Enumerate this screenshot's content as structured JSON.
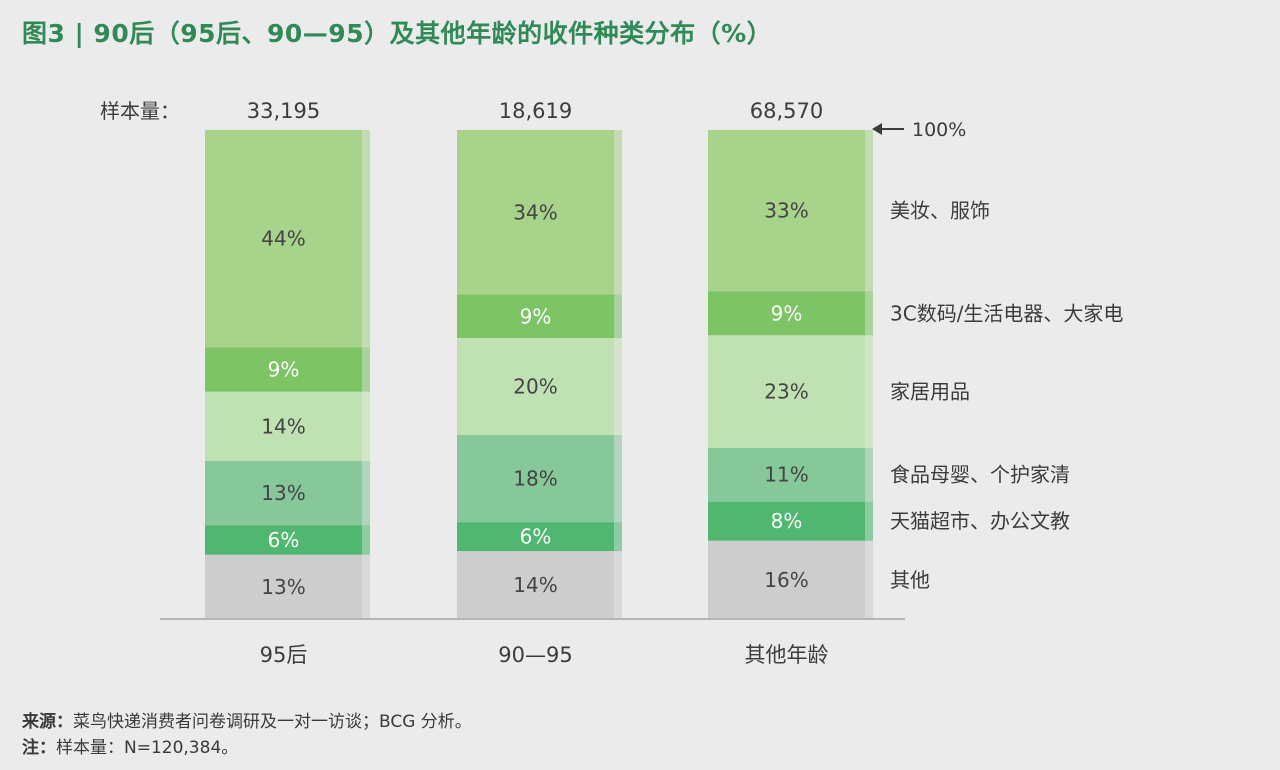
{
  "title": "图3 | 90后（95后、90—95）及其他年龄的收件种类分布（%）",
  "sample_label": "样本量：",
  "top_marker": "100%",
  "colors": {
    "title": "#2e8b57",
    "series": [
      "#a7d38b",
      "#7cc464",
      "#c0e2b2",
      "#86c89a",
      "#4fb770",
      "#cdcdcd"
    ]
  },
  "chart_data": {
    "type": "bar",
    "stacked": true,
    "percent": true,
    "ylim": [
      0,
      100
    ],
    "categories": [
      "95后",
      "90—95",
      "其他年龄"
    ],
    "sample_sizes": [
      "33,195",
      "18,619",
      "68,570"
    ],
    "series": [
      {
        "name": "美妆、服饰",
        "values": [
          44,
          34,
          33
        ]
      },
      {
        "name": "3C数码/生活电器、大家电",
        "values": [
          9,
          9,
          9
        ]
      },
      {
        "name": "家居用品",
        "values": [
          14,
          20,
          23
        ]
      },
      {
        "name": "食品母婴、个护家清",
        "values": [
          13,
          18,
          11
        ]
      },
      {
        "name": "天猫超市、办公文教",
        "values": [
          6,
          6,
          8
        ]
      },
      {
        "name": "其他",
        "values": [
          13,
          14,
          16
        ]
      }
    ],
    "value_labels": [
      [
        "44%",
        "34%",
        "33%"
      ],
      [
        "9%",
        "9%",
        "9%"
      ],
      [
        "14%",
        "20%",
        "23%"
      ],
      [
        "13%",
        "18%",
        "11%"
      ],
      [
        "6%",
        "6%",
        "8%"
      ],
      [
        "13%",
        "14%",
        "16%"
      ]
    ]
  },
  "footer": {
    "source_label": "来源：",
    "source_text": "菜鸟快递消费者问卷调研及一对一访谈；BCG 分析。",
    "note_label": "注：",
    "note_text": "样本量：N=120,384。"
  }
}
